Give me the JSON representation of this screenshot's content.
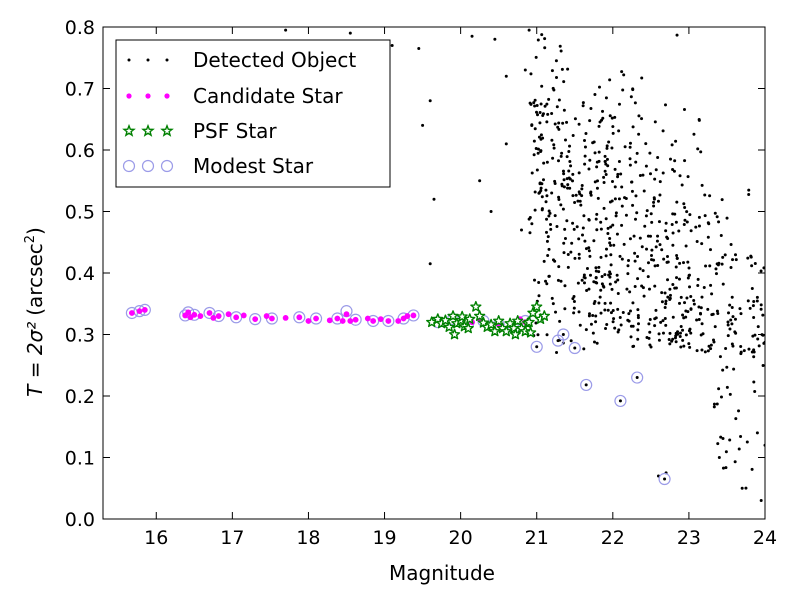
{
  "chart_data": {
    "type": "scatter",
    "xlabel": "Magnitude",
    "ylabel": "(arcsec",
    "ylabel_math": "T = 2σ²",
    "xlim": [
      15.3,
      24.0
    ],
    "ylim": [
      0.0,
      0.8
    ],
    "xticks": [
      "16",
      "17",
      "18",
      "19",
      "20",
      "21",
      "22",
      "23",
      "24"
    ],
    "yticks": [
      "0.0",
      "0.1",
      "0.2",
      "0.3",
      "0.4",
      "0.5",
      "0.6",
      "0.7",
      "0.8"
    ],
    "grid": false,
    "legend_position": "top-left",
    "colors": {
      "detected": "#000000",
      "candidate": "#ff00ff",
      "psf": "#008000",
      "psf_fill": "#ffffff",
      "modest": "#9b9be8"
    },
    "series": [
      {
        "name": "Detected Object",
        "marker": "dot",
        "generated_points": 760,
        "points": [
          [
            17.7,
            0.795
          ],
          [
            18.55,
            0.79
          ],
          [
            19.1,
            0.77
          ],
          [
            19.45,
            0.765
          ],
          [
            19.6,
            0.68
          ],
          [
            19.5,
            0.64
          ],
          [
            19.65,
            0.52
          ],
          [
            19.6,
            0.415
          ],
          [
            20.15,
            0.785
          ],
          [
            20.45,
            0.78
          ],
          [
            20.9,
            0.795
          ],
          [
            20.6,
            0.72
          ],
          [
            20.85,
            0.73
          ],
          [
            20.25,
            0.55
          ],
          [
            20.4,
            0.5
          ],
          [
            20.6,
            0.61
          ],
          [
            20.8,
            0.47
          ],
          [
            22.7,
            0.075
          ],
          [
            23.4,
            0.1
          ],
          [
            23.7,
            0.05
          ],
          [
            23.95,
            0.03
          ],
          [
            24.0,
            0.12
          ],
          [
            23.9,
            0.14
          ],
          [
            22.6,
            0.07
          ]
        ]
      },
      {
        "name": "Candidate Star",
        "marker": "circle-small",
        "points": [
          [
            15.68,
            0.335
          ],
          [
            15.78,
            0.338
          ],
          [
            15.85,
            0.34
          ],
          [
            16.38,
            0.331
          ],
          [
            16.42,
            0.336
          ],
          [
            16.45,
            0.328
          ],
          [
            16.5,
            0.332
          ],
          [
            16.58,
            0.33
          ],
          [
            16.7,
            0.335
          ],
          [
            16.75,
            0.327
          ],
          [
            16.82,
            0.33
          ],
          [
            16.95,
            0.333
          ],
          [
            17.05,
            0.328
          ],
          [
            17.15,
            0.331
          ],
          [
            17.3,
            0.325
          ],
          [
            17.45,
            0.33
          ],
          [
            17.52,
            0.326
          ],
          [
            17.7,
            0.327
          ],
          [
            17.88,
            0.328
          ],
          [
            18.0,
            0.322
          ],
          [
            18.1,
            0.326
          ],
          [
            18.28,
            0.323
          ],
          [
            18.38,
            0.326
          ],
          [
            18.45,
            0.322
          ],
          [
            18.5,
            0.333
          ],
          [
            18.55,
            0.322
          ],
          [
            18.62,
            0.324
          ],
          [
            18.78,
            0.326
          ],
          [
            18.85,
            0.322
          ],
          [
            18.95,
            0.325
          ],
          [
            19.05,
            0.322
          ],
          [
            19.18,
            0.322
          ],
          [
            19.25,
            0.326
          ],
          [
            19.3,
            0.33
          ],
          [
            19.38,
            0.331
          ],
          [
            20.15,
            0.32
          ],
          [
            20.25,
            0.325
          ],
          [
            20.78,
            0.325
          ],
          [
            20.85,
            0.32
          ],
          [
            20.5,
            0.316
          ]
        ]
      },
      {
        "name": "PSF Star",
        "marker": "star",
        "points": [
          [
            19.62,
            0.32
          ],
          [
            19.7,
            0.325
          ],
          [
            19.75,
            0.318
          ],
          [
            19.8,
            0.323
          ],
          [
            19.85,
            0.312
          ],
          [
            19.9,
            0.33
          ],
          [
            19.95,
            0.318
          ],
          [
            20.0,
            0.323
          ],
          [
            20.05,
            0.313
          ],
          [
            20.1,
            0.31
          ],
          [
            20.12,
            0.325
          ],
          [
            20.2,
            0.345
          ],
          [
            20.25,
            0.33
          ],
          [
            20.3,
            0.319
          ],
          [
            20.35,
            0.312
          ],
          [
            20.4,
            0.316
          ],
          [
            20.45,
            0.305
          ],
          [
            20.5,
            0.322
          ],
          [
            20.55,
            0.31
          ],
          [
            20.6,
            0.305
          ],
          [
            20.65,
            0.318
          ],
          [
            20.7,
            0.31
          ],
          [
            20.72,
            0.3
          ],
          [
            20.75,
            0.322
          ],
          [
            20.8,
            0.31
          ],
          [
            20.85,
            0.305
          ],
          [
            20.88,
            0.318
          ],
          [
            20.9,
            0.32
          ],
          [
            20.92,
            0.303
          ],
          [
            20.95,
            0.335
          ],
          [
            21.0,
            0.345
          ],
          [
            21.05,
            0.325
          ],
          [
            21.1,
            0.33
          ],
          [
            19.92,
            0.3
          ],
          [
            20.02,
            0.329
          ]
        ]
      },
      {
        "name": "Modest Star",
        "marker": "circle-open",
        "points": [
          [
            15.68,
            0.335
          ],
          [
            15.78,
            0.338
          ],
          [
            15.85,
            0.34
          ],
          [
            16.38,
            0.331
          ],
          [
            16.42,
            0.336
          ],
          [
            16.5,
            0.332
          ],
          [
            16.7,
            0.335
          ],
          [
            16.82,
            0.33
          ],
          [
            17.05,
            0.328
          ],
          [
            17.3,
            0.325
          ],
          [
            17.52,
            0.326
          ],
          [
            17.88,
            0.328
          ],
          [
            18.1,
            0.326
          ],
          [
            18.38,
            0.326
          ],
          [
            18.5,
            0.338
          ],
          [
            18.62,
            0.324
          ],
          [
            18.85,
            0.322
          ],
          [
            19.05,
            0.322
          ],
          [
            19.25,
            0.326
          ],
          [
            19.38,
            0.331
          ],
          [
            19.7,
            0.32
          ],
          [
            19.9,
            0.325
          ],
          [
            20.1,
            0.318
          ],
          [
            20.3,
            0.322
          ],
          [
            20.5,
            0.316
          ],
          [
            20.7,
            0.31
          ],
          [
            20.85,
            0.322
          ],
          [
            21.0,
            0.28
          ],
          [
            21.28,
            0.29
          ],
          [
            21.35,
            0.3
          ],
          [
            21.5,
            0.278
          ],
          [
            21.65,
            0.218
          ],
          [
            22.1,
            0.192
          ],
          [
            22.32,
            0.23
          ],
          [
            22.68,
            0.065
          ]
        ]
      }
    ]
  }
}
